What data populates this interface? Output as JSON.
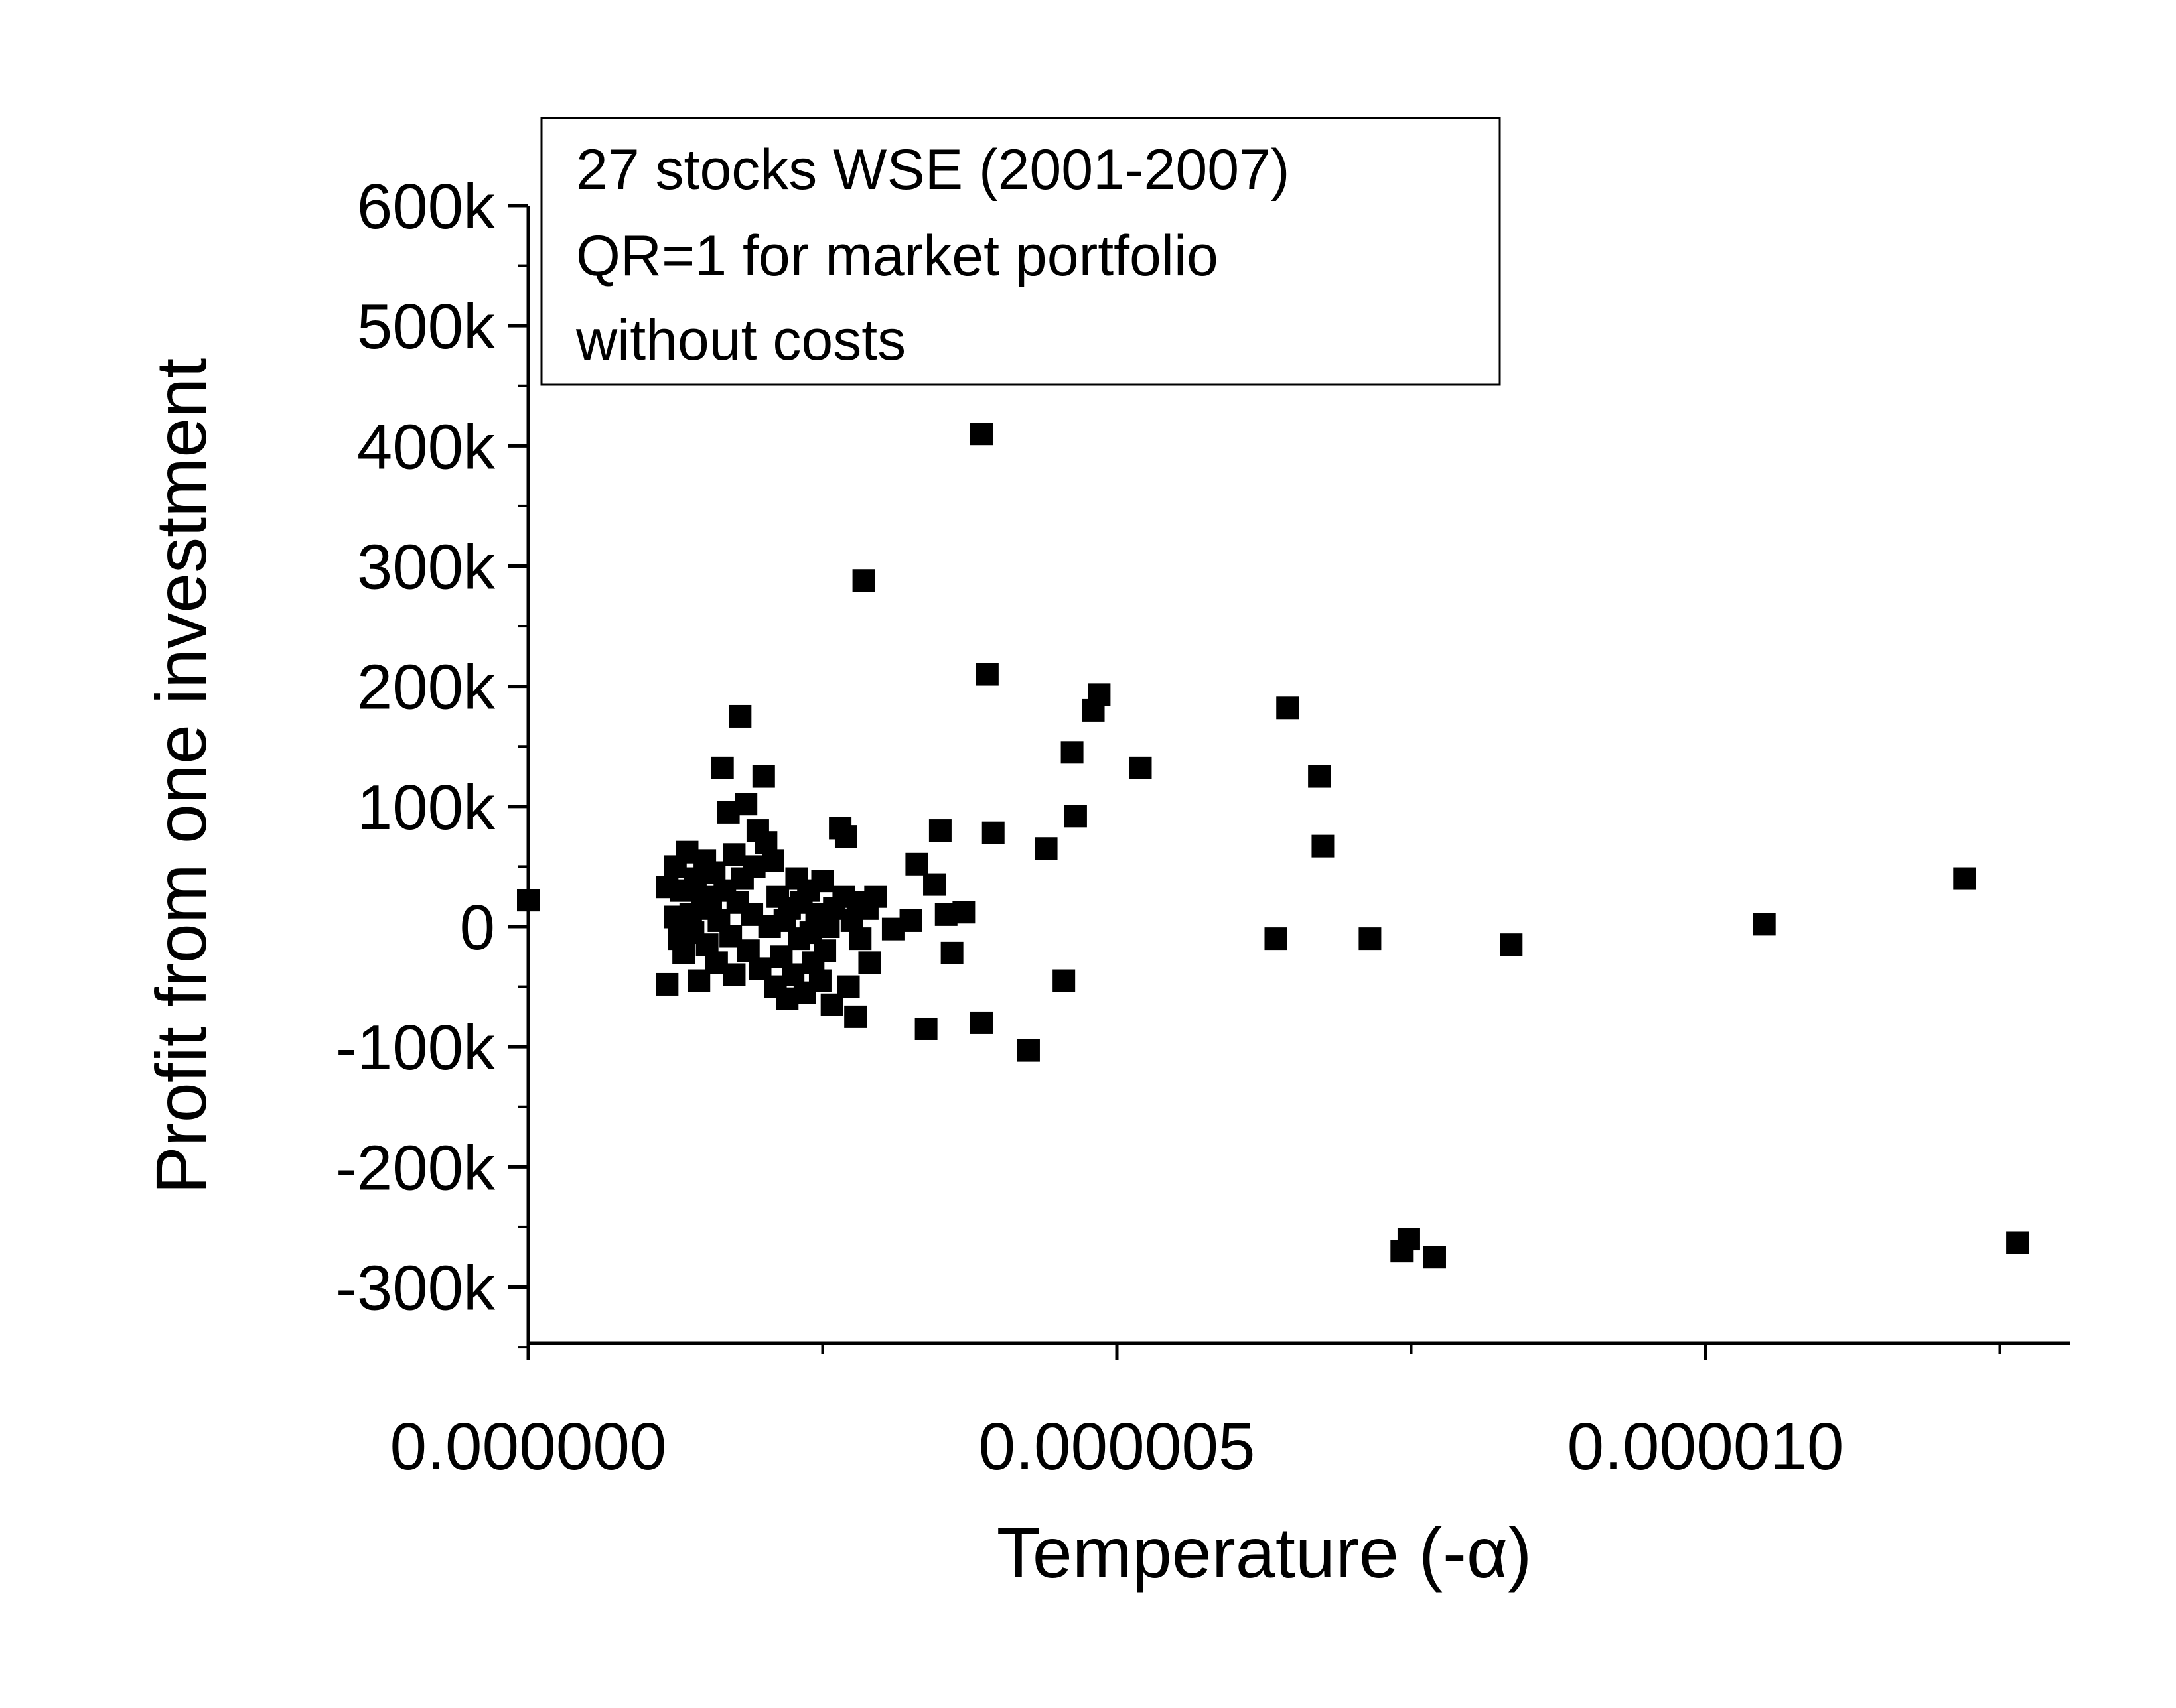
{
  "chart_data": {
    "type": "scatter",
    "xlabel": "Temperature (-α)",
    "ylabel": "Profit from one investment",
    "xlim": [
      0,
      1.3e-05
    ],
    "ylim": [
      -350000,
      600000
    ],
    "x_ticks": [
      0,
      5e-06,
      1e-05
    ],
    "x_tick_labels": [
      "0.000000",
      "0.000005",
      "0.000010"
    ],
    "y_ticks": [
      600000,
      500000,
      400000,
      300000,
      200000,
      100000,
      0,
      -100000,
      -200000,
      -300000
    ],
    "y_tick_labels": [
      "600k",
      "500k",
      "400k",
      "300k",
      "200k",
      "100k",
      "0",
      "-100k",
      "-200k",
      "-300k"
    ],
    "legend": {
      "placement": "top-left",
      "lines": [
        "27 stocks WSE (2001-2007)",
        "QR=1 for market portfolio",
        "without costs"
      ]
    },
    "grid": false,
    "marker": "square",
    "marker_color": "#000000",
    "series": [
      {
        "points": [
          [
            0.0,
            22000
          ],
          [
            1.18e-06,
            33000
          ],
          [
            1.18e-06,
            -48000
          ],
          [
            1.25e-06,
            8000
          ],
          [
            1.25e-06,
            50000
          ],
          [
            1.28e-06,
            -10000
          ],
          [
            1.3e-06,
            30000
          ],
          [
            1.32e-06,
            -22000
          ],
          [
            1.35e-06,
            62000
          ],
          [
            1.38e-06,
            10000
          ],
          [
            1.4e-06,
            -5000
          ],
          [
            1.42e-06,
            40000
          ],
          [
            1.45e-06,
            -45000
          ],
          [
            1.48e-06,
            25000
          ],
          [
            1.5e-06,
            55000
          ],
          [
            1.52e-06,
            -15000
          ],
          [
            1.55e-06,
            15000
          ],
          [
            1.58e-06,
            45000
          ],
          [
            1.6e-06,
            -30000
          ],
          [
            1.62e-06,
            5000
          ],
          [
            1.65e-06,
            132000
          ],
          [
            1.67e-06,
            30000
          ],
          [
            1.7e-06,
            95000
          ],
          [
            1.72e-06,
            -8000
          ],
          [
            1.75e-06,
            60000
          ],
          [
            1.75e-06,
            -40000
          ],
          [
            1.78e-06,
            20000
          ],
          [
            1.8e-06,
            175000
          ],
          [
            1.82e-06,
            40000
          ],
          [
            1.85e-06,
            102000
          ],
          [
            1.87e-06,
            -20000
          ],
          [
            1.9e-06,
            10000
          ],
          [
            1.92e-06,
            50000
          ],
          [
            1.95e-06,
            80000
          ],
          [
            1.97e-06,
            -35000
          ],
          [
            2e-06,
            125000
          ],
          [
            2.02e-06,
            70000
          ],
          [
            2.05e-06,
            0
          ],
          [
            2.08e-06,
            55000
          ],
          [
            2.1e-06,
            -50000
          ],
          [
            2.12e-06,
            25000
          ],
          [
            2.15e-06,
            -25000
          ],
          [
            2.18e-06,
            5000
          ],
          [
            2.2e-06,
            -60000
          ],
          [
            2.22e-06,
            15000
          ],
          [
            2.25e-06,
            -40000
          ],
          [
            2.28e-06,
            40000
          ],
          [
            2.3e-06,
            -10000
          ],
          [
            2.32e-06,
            20000
          ],
          [
            2.35e-06,
            -55000
          ],
          [
            2.38e-06,
            30000
          ],
          [
            2.4e-06,
            -5000
          ],
          [
            2.42e-06,
            -30000
          ],
          [
            2.45e-06,
            10000
          ],
          [
            2.48e-06,
            -45000
          ],
          [
            2.5e-06,
            38000
          ],
          [
            2.52e-06,
            -20000
          ],
          [
            2.55e-06,
            0
          ],
          [
            2.58e-06,
            -65000
          ],
          [
            2.6e-06,
            15000
          ],
          [
            2.65e-06,
            82000
          ],
          [
            2.68e-06,
            25000
          ],
          [
            2.7e-06,
            75000
          ],
          [
            2.72e-06,
            -50000
          ],
          [
            2.75e-06,
            5000
          ],
          [
            2.78e-06,
            -75000
          ],
          [
            2.8e-06,
            20000
          ],
          [
            2.82e-06,
            -10000
          ],
          [
            2.85e-06,
            288000
          ],
          [
            2.88e-06,
            15000
          ],
          [
            2.9e-06,
            -30000
          ],
          [
            2.95e-06,
            25000
          ],
          [
            3.1e-06,
            -2000
          ],
          [
            3.25e-06,
            5000
          ],
          [
            3.3e-06,
            52000
          ],
          [
            3.38e-06,
            -85000
          ],
          [
            3.45e-06,
            35000
          ],
          [
            3.5e-06,
            80000
          ],
          [
            3.55e-06,
            10000
          ],
          [
            3.6e-06,
            -22000
          ],
          [
            3.7e-06,
            12000
          ],
          [
            3.85e-06,
            410000
          ],
          [
            3.85e-06,
            -80000
          ],
          [
            3.9e-06,
            210000
          ],
          [
            3.95e-06,
            78000
          ],
          [
            4.25e-06,
            -103000
          ],
          [
            4.4e-06,
            65000
          ],
          [
            4.55e-06,
            -45000
          ],
          [
            4.62e-06,
            145000
          ],
          [
            4.65e-06,
            92000
          ],
          [
            4.8e-06,
            180000
          ],
          [
            4.85e-06,
            193000
          ],
          [
            5.2e-06,
            132000
          ],
          [
            6.35e-06,
            -10000
          ],
          [
            6.45e-06,
            182000
          ],
          [
            6.72e-06,
            125000
          ],
          [
            6.75e-06,
            67000
          ],
          [
            7.15e-06,
            -10000
          ],
          [
            7.42e-06,
            -270000
          ],
          [
            7.48e-06,
            -260000
          ],
          [
            7.7e-06,
            -275000
          ],
          [
            8.35e-06,
            -15000
          ],
          [
            1.05e-05,
            2000
          ],
          [
            1.22e-05,
            40000
          ],
          [
            1.265e-05,
            -263000
          ]
        ]
      }
    ]
  }
}
